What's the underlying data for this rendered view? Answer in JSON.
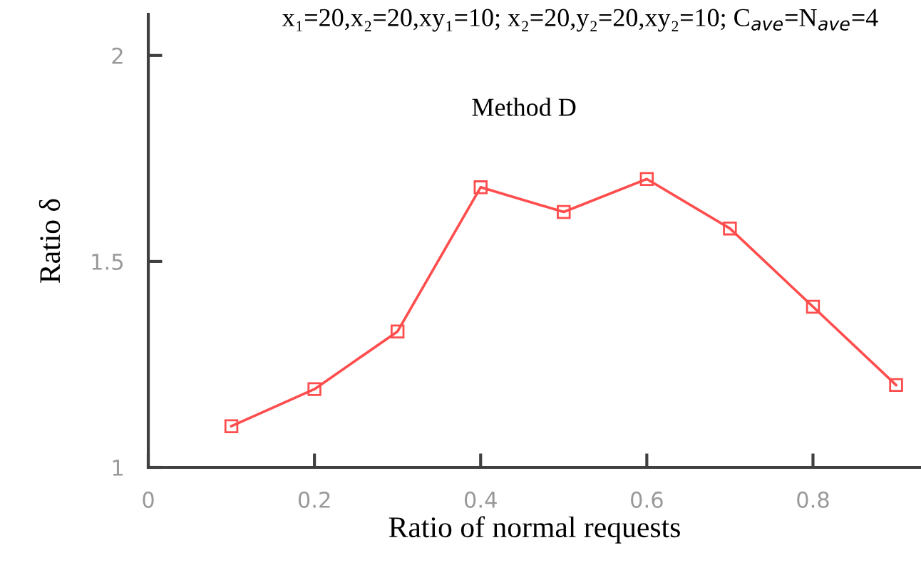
{
  "chart_data": {
    "type": "line",
    "title": "x₁=20,x₂=20,xy₁=10; x₂=20,y₂=20,xy₂=10; C$_{ave}$=N$_{ave}$=4",
    "xlabel": "Ratio of normal requests",
    "ylabel": "Ratio δ",
    "x": [
      0.1,
      0.2,
      0.3,
      0.4,
      0.5,
      0.6,
      0.7,
      0.8,
      0.9
    ],
    "series": [
      {
        "name": "Method D",
        "color": "#ff4d4d",
        "values": [
          1.1,
          1.19,
          1.33,
          1.68,
          1.62,
          1.7,
          1.58,
          1.39,
          1.2
        ]
      }
    ],
    "xlim": [
      0,
      0.93
    ],
    "ylim": [
      1,
      2.1
    ],
    "xticks": [
      0,
      0.2,
      0.4,
      0.6,
      0.8
    ],
    "yticks": [
      1,
      1.5,
      2
    ],
    "grid": false,
    "legend": false,
    "marker": "square",
    "line_style": "solid"
  }
}
